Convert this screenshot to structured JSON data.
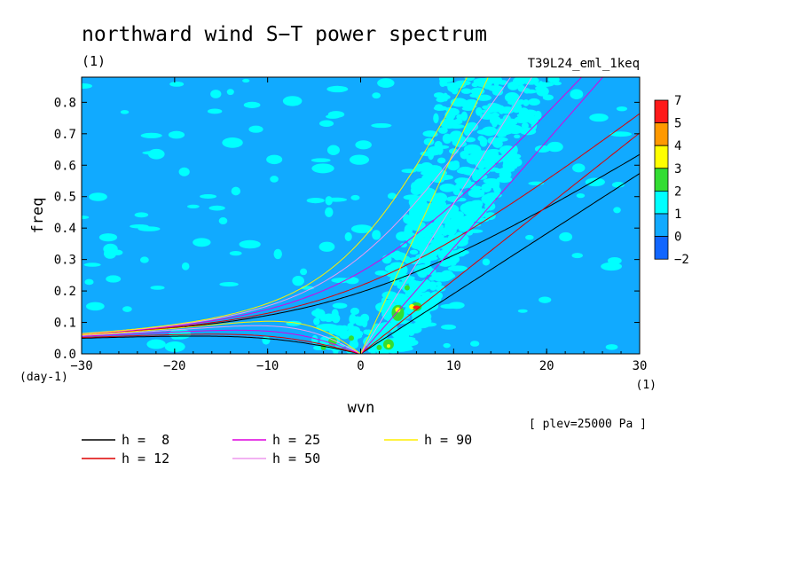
{
  "chart_data": {
    "type": "heatmap",
    "title": "northward wind S−T power spectrum",
    "units_label": "(1)",
    "experiment": "T39L24_eml_1keq",
    "xlabel": "wvn",
    "ylabel": "freq",
    "x_units": "(1)",
    "y_units": "(day-1)",
    "level_note": "[ plev=25000 Pa ]",
    "xlim": [
      -30,
      30
    ],
    "ylim": [
      0,
      0.88
    ],
    "x_ticks": [
      "−30",
      "−20",
      "−10",
      "0",
      "10",
      "20",
      "30"
    ],
    "y_ticks": [
      "0.0",
      "0.1",
      "0.2",
      "0.3",
      "0.4",
      "0.5",
      "0.6",
      "0.7",
      "0.8"
    ],
    "colorbar": {
      "labels": [
        "7",
        "5",
        "4",
        "3",
        "2",
        "1",
        "0",
        "−2"
      ],
      "colors": [
        "#ff1a1a",
        "#ff9900",
        "#ffff00",
        "#33dd33",
        "#00ffff",
        "#11aaff",
        "#1166ff"
      ]
    },
    "background_color": "#11aaff",
    "series": [
      {
        "name": "h =  8",
        "h": 8,
        "color": "#000000"
      },
      {
        "name": "h = 12",
        "h": 12,
        "color": "#dd0000"
      },
      {
        "name": "h = 25",
        "h": 25,
        "color": "#dd00dd"
      },
      {
        "name": "h = 50",
        "h": 50,
        "color": "#ee99ee"
      },
      {
        "name": "h = 90",
        "h": 90,
        "color": "#ffee00"
      }
    ]
  }
}
